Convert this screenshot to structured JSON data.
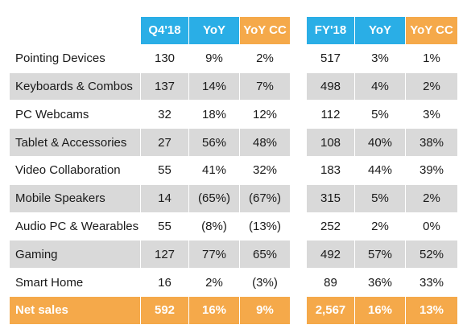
{
  "header": {
    "q4": "Q4'18",
    "yoy": "YoY",
    "yoy_cc": "YoY CC",
    "fy": "FY'18",
    "fy_yoy": "YoY",
    "fy_yoy_cc": "YoY CC"
  },
  "rows": [
    {
      "label": "Pointing Devices",
      "q4": "130",
      "yoy": "9%",
      "yoy_cc": "2%",
      "fy": "517",
      "fy_yoy": "3%",
      "fy_yoy_cc": "1%"
    },
    {
      "label": "Keyboards & Combos",
      "q4": "137",
      "yoy": "14%",
      "yoy_cc": "7%",
      "fy": "498",
      "fy_yoy": "4%",
      "fy_yoy_cc": "2%"
    },
    {
      "label": "PC Webcams",
      "q4": "32",
      "yoy": "18%",
      "yoy_cc": "12%",
      "fy": "112",
      "fy_yoy": "5%",
      "fy_yoy_cc": "3%"
    },
    {
      "label": "Tablet & Accessories",
      "q4": "27",
      "yoy": "56%",
      "yoy_cc": "48%",
      "fy": "108",
      "fy_yoy": "40%",
      "fy_yoy_cc": "38%"
    },
    {
      "label": "Video Collaboration",
      "q4": "55",
      "yoy": "41%",
      "yoy_cc": "32%",
      "fy": "183",
      "fy_yoy": "44%",
      "fy_yoy_cc": "39%"
    },
    {
      "label": "Mobile Speakers",
      "q4": "14",
      "yoy": "(65%)",
      "yoy_cc": "(67%)",
      "fy": "315",
      "fy_yoy": "5%",
      "fy_yoy_cc": "2%"
    },
    {
      "label": "Audio PC & Wearables",
      "q4": "55",
      "yoy": "(8%)",
      "yoy_cc": "(13%)",
      "fy": "252",
      "fy_yoy": "2%",
      "fy_yoy_cc": "0%"
    },
    {
      "label": "Gaming",
      "q4": "127",
      "yoy": "77%",
      "yoy_cc": "65%",
      "fy": "492",
      "fy_yoy": "57%",
      "fy_yoy_cc": "52%"
    },
    {
      "label": "Smart Home",
      "q4": "16",
      "yoy": "2%",
      "yoy_cc": "(3%)",
      "fy": "89",
      "fy_yoy": "36%",
      "fy_yoy_cc": "33%"
    }
  ],
  "total": {
    "label": "Net sales",
    "q4": "592",
    "yoy": "16%",
    "yoy_cc": "9%",
    "fy": "2,567",
    "fy_yoy": "16%",
    "fy_yoy_cc": "13%"
  },
  "colors": {
    "header_blue": "#2aaee6",
    "accent_orange": "#f5a94a",
    "row_shade": "#d9d9d9"
  }
}
